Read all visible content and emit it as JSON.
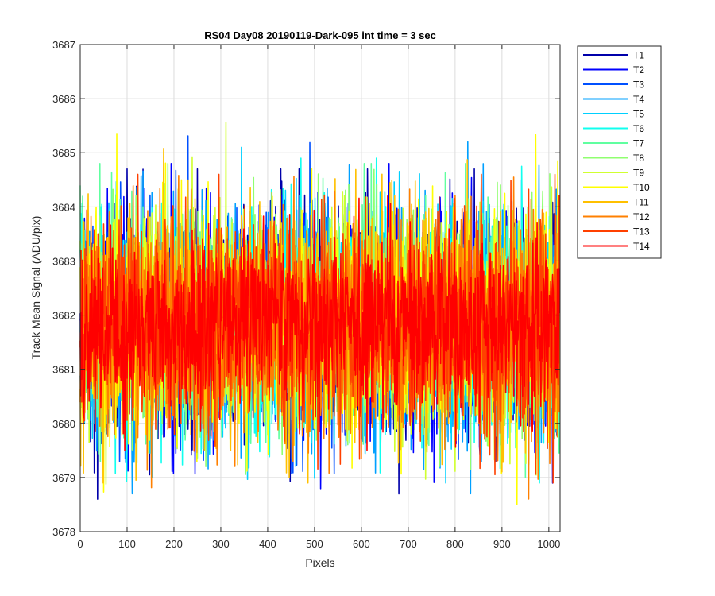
{
  "chart_data": {
    "type": "line",
    "title": "RS04 Day08 20190119-Dark-095 int time = 3 sec",
    "xlabel": "Pixels",
    "ylabel": "Track Mean Signal (ADU/pix)",
    "xlim": [
      0,
      1024
    ],
    "ylim": [
      3678,
      3687
    ],
    "xticks": [
      0,
      100,
      200,
      300,
      400,
      500,
      600,
      700,
      800,
      900,
      1000
    ],
    "yticks": [
      3678,
      3679,
      3680,
      3681,
      3682,
      3683,
      3684,
      3685,
      3686,
      3687
    ],
    "grid": true,
    "legend_position": "outside-top-right",
    "n_points": 1024,
    "series": [
      {
        "name": "T1",
        "color": "#0000aa",
        "mean": 3681.8,
        "std": 1.05,
        "min": 3678.6,
        "max": 3684.7
      },
      {
        "name": "T2",
        "color": "#0000ff",
        "mean": 3681.8,
        "std": 1.05,
        "min": 3678.6,
        "max": 3684.8
      },
      {
        "name": "T3",
        "color": "#0050ff",
        "mean": 3681.8,
        "std": 1.0,
        "min": 3678.7,
        "max": 3685.4
      },
      {
        "name": "T4",
        "color": "#00a0ff",
        "mean": 3681.8,
        "std": 1.0,
        "min": 3678.7,
        "max": 3685.2
      },
      {
        "name": "T5",
        "color": "#00d0ff",
        "mean": 3681.8,
        "std": 1.0,
        "min": 3678.9,
        "max": 3685.1
      },
      {
        "name": "T6",
        "color": "#10ffef",
        "mean": 3681.8,
        "std": 1.0,
        "min": 3678.9,
        "max": 3684.9
      },
      {
        "name": "T7",
        "color": "#60ffa0",
        "mean": 3681.8,
        "std": 1.0,
        "min": 3679.0,
        "max": 3684.8
      },
      {
        "name": "T8",
        "color": "#90ff70",
        "mean": 3681.8,
        "std": 1.0,
        "min": 3679.0,
        "max": 3684.8
      },
      {
        "name": "T9",
        "color": "#d0ff30",
        "mean": 3681.8,
        "std": 1.0,
        "min": 3678.5,
        "max": 3686.1
      },
      {
        "name": "T10",
        "color": "#ffff00",
        "mean": 3681.8,
        "std": 1.0,
        "min": 3678.5,
        "max": 3686.1
      },
      {
        "name": "T11",
        "color": "#ffc000",
        "mean": 3681.8,
        "std": 1.0,
        "min": 3678.9,
        "max": 3685.2
      },
      {
        "name": "T12",
        "color": "#ff8000",
        "mean": 3681.8,
        "std": 1.0,
        "min": 3678.6,
        "max": 3684.8
      },
      {
        "name": "T13",
        "color": "#ff4000",
        "mean": 3681.8,
        "std": 0.95,
        "min": 3678.9,
        "max": 3684.6
      },
      {
        "name": "T14",
        "color": "#ff0000",
        "mean": 3681.8,
        "std": 0.8,
        "min": 3679.5,
        "max": 3684.2
      }
    ]
  }
}
